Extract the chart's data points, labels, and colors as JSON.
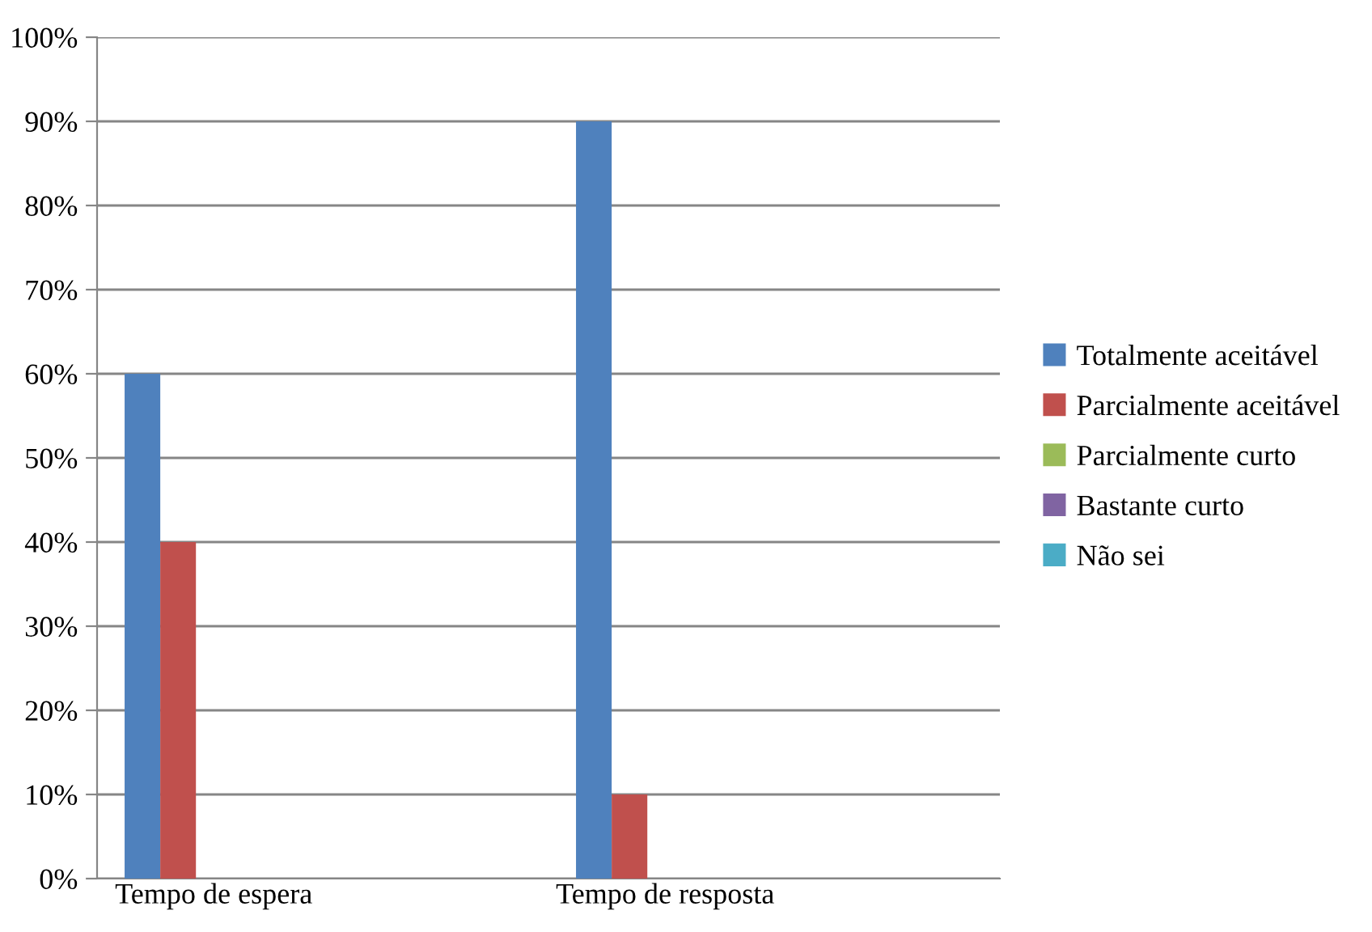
{
  "chart_data": {
    "type": "bar",
    "categories": [
      "Tempo de espera",
      "Tempo de resposta"
    ],
    "series": [
      {
        "name": "Totalmente aceitável",
        "color": "#4f81bd",
        "values": [
          60,
          90
        ]
      },
      {
        "name": "Parcialmente aceitável",
        "color": "#c0504d",
        "values": [
          40,
          10
        ]
      },
      {
        "name": "Parcialmente curto",
        "color": "#9bbb59",
        "values": [
          0,
          0
        ]
      },
      {
        "name": "Bastante curto",
        "color": "#8064a2",
        "values": [
          0,
          0
        ]
      },
      {
        "name": "Não sei",
        "color": "#4bacc6",
        "values": [
          0,
          0
        ]
      }
    ],
    "ylim": [
      0,
      100
    ],
    "yticks": [
      {
        "value": 0,
        "label": "0%"
      },
      {
        "value": 10,
        "label": "10%"
      },
      {
        "value": 20,
        "label": "20%"
      },
      {
        "value": 30,
        "label": "30%"
      },
      {
        "value": 40,
        "label": "40%"
      },
      {
        "value": 50,
        "label": "50%"
      },
      {
        "value": 60,
        "label": "60%"
      },
      {
        "value": 70,
        "label": "70%"
      },
      {
        "value": 80,
        "label": "80%"
      },
      {
        "value": 90,
        "label": "90%"
      },
      {
        "value": 100,
        "label": "100%"
      }
    ],
    "grid": "y",
    "legend": "right"
  }
}
